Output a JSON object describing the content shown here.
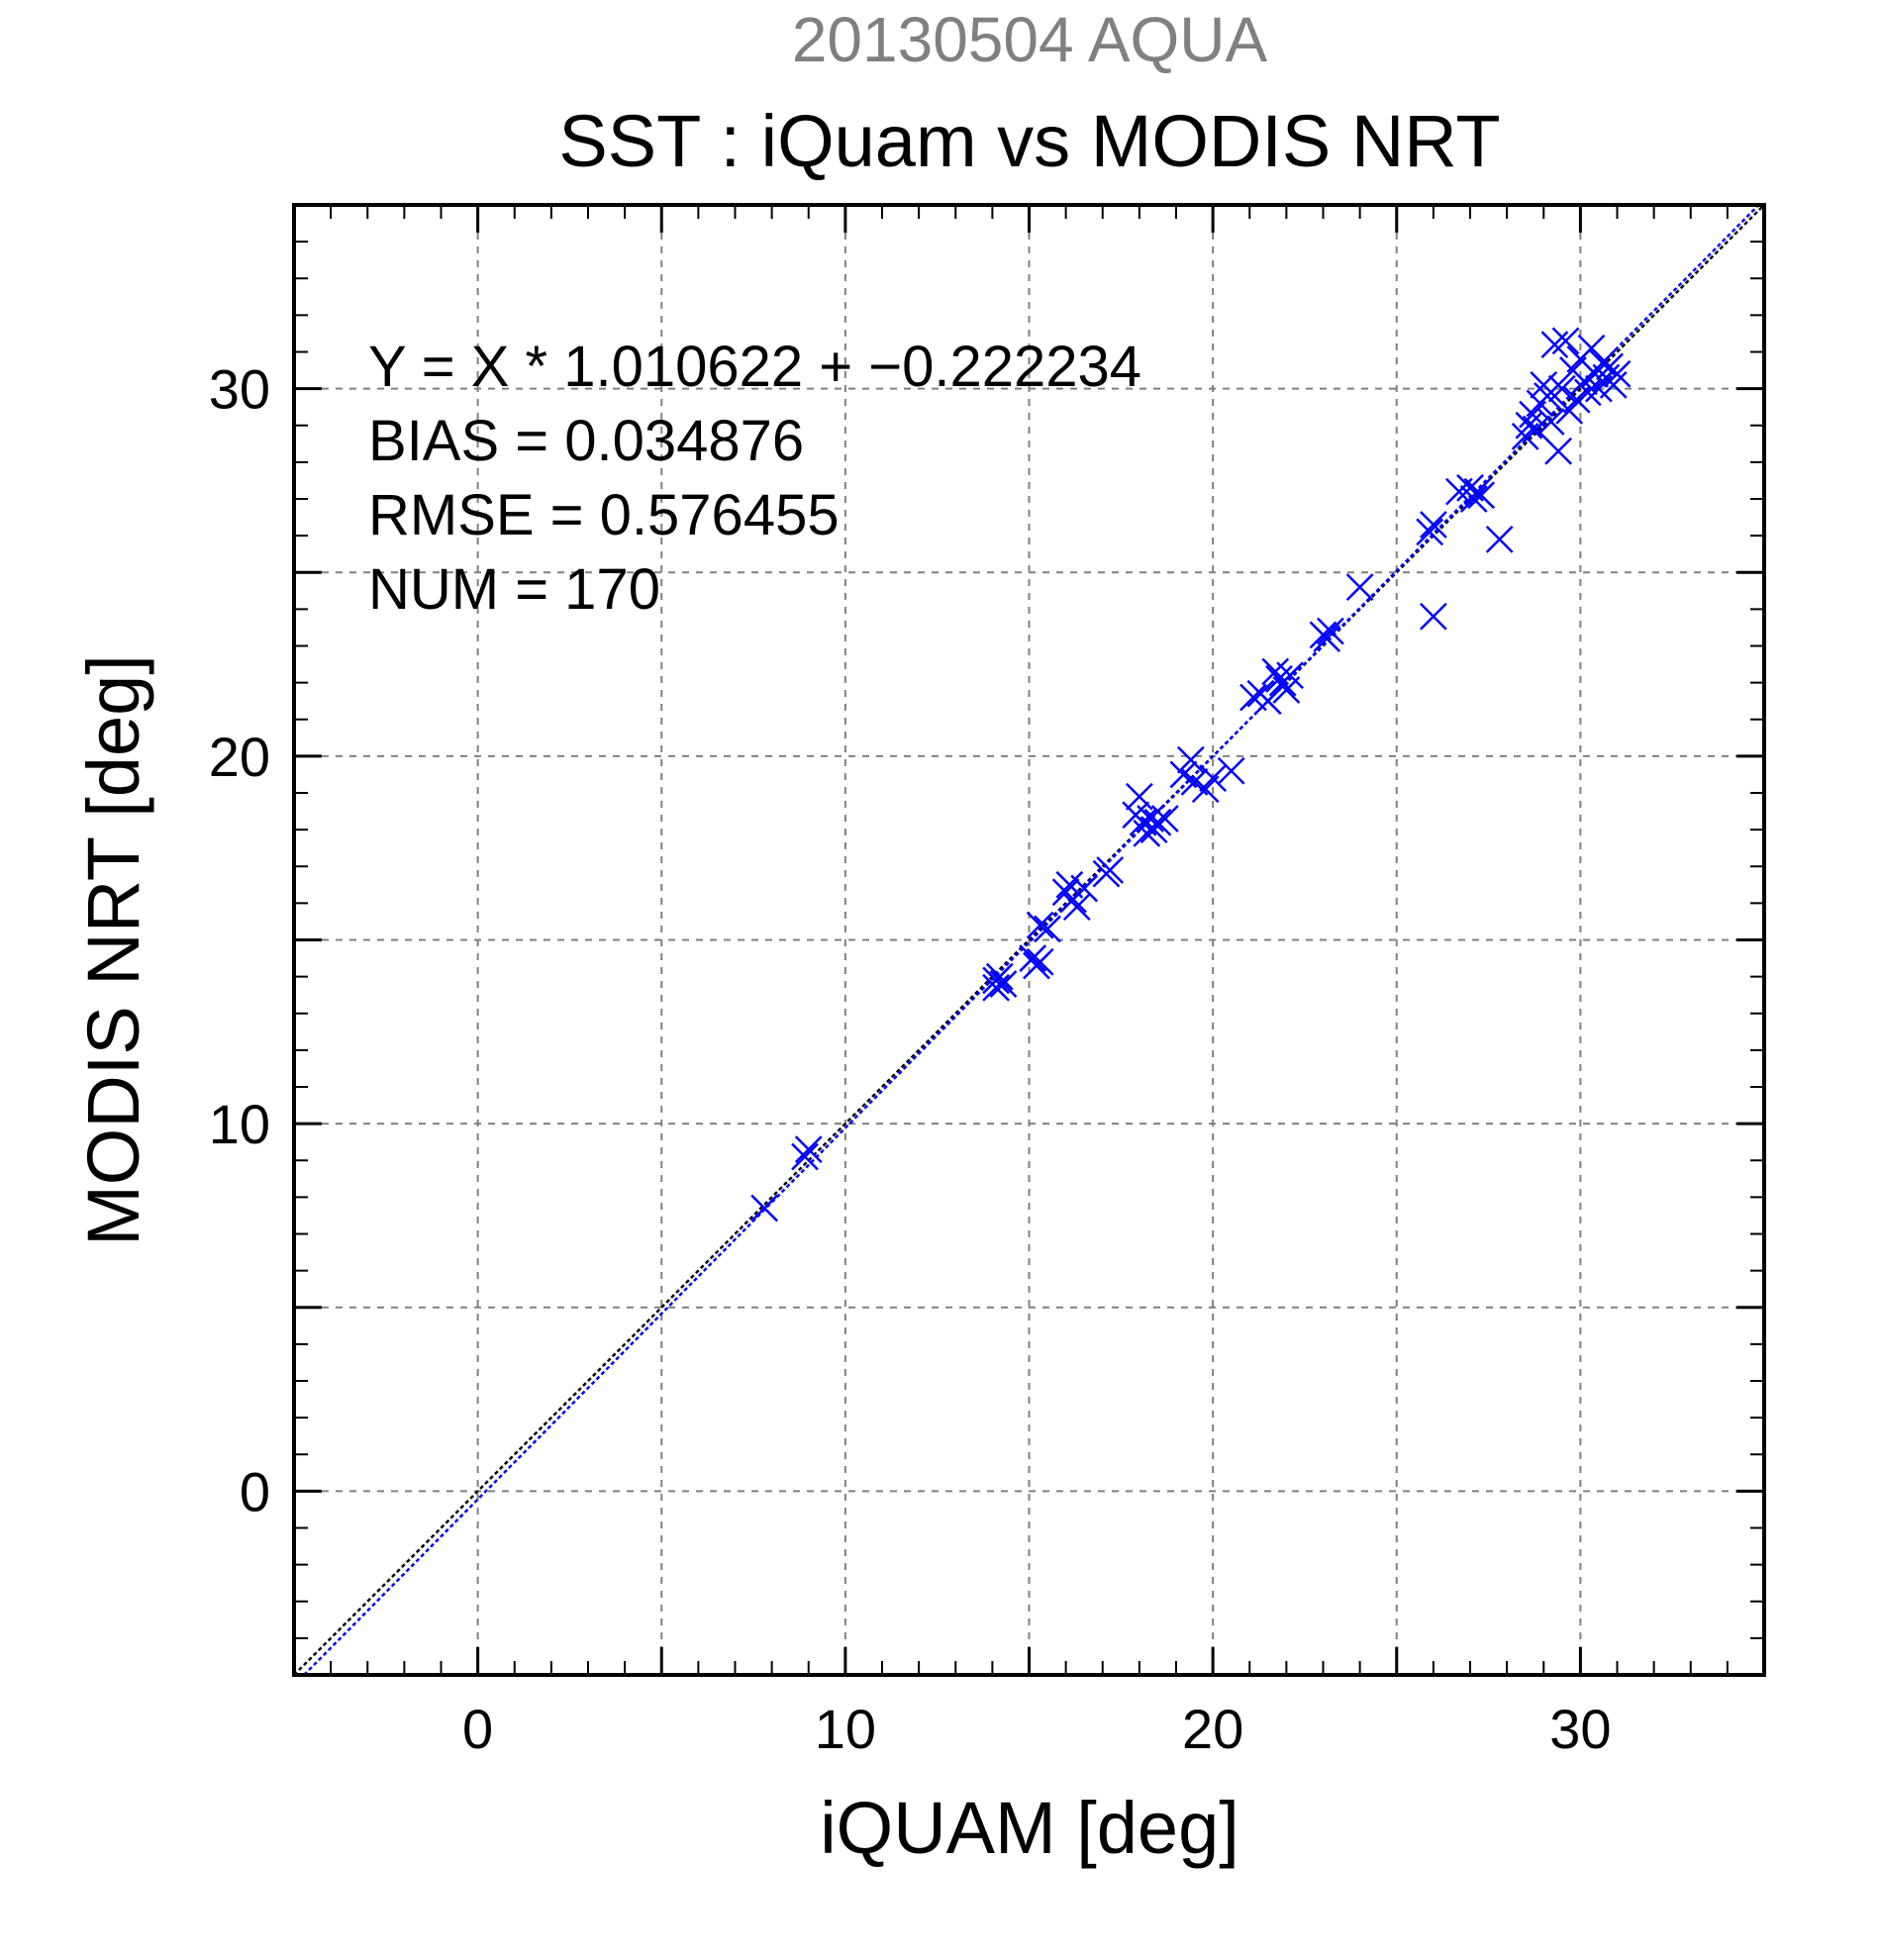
{
  "chart_data": {
    "type": "scatter",
    "title": "SST : iQuam vs MODIS NRT",
    "subtitle": "20130504 AQUA",
    "xlabel": "iQUAM [deg]",
    "ylabel": "MODIS NRT [deg]",
    "xlim": [
      -5,
      35
    ],
    "ylim": [
      -5,
      35
    ],
    "x_ticks": [
      0,
      10,
      20,
      30
    ],
    "y_ticks": [
      0,
      10,
      20,
      30
    ],
    "x_tick_labels": [
      "0",
      "10",
      "20",
      "30"
    ],
    "y_tick_labels": [
      "0",
      "10",
      "20",
      "30"
    ],
    "grid": true,
    "marker": "x",
    "colors": {
      "points": "#0000ff",
      "fit_line": "#0000ff",
      "one_to_one": "#000000",
      "subtitle": "#808080",
      "grid": "#808080"
    },
    "annotations": [
      "Y = X * 1.010622 + −0.222234",
      "BIAS = 0.034876",
      "RMSE = 0.576455",
      "NUM = 170"
    ],
    "fit": {
      "slope": 1.010622,
      "intercept": -0.222234
    },
    "points": [
      [
        7.8,
        7.7
      ],
      [
        9.0,
        9.3
      ],
      [
        8.9,
        9.1
      ],
      [
        14.1,
        13.9
      ],
      [
        14.2,
        14.0
      ],
      [
        14.1,
        13.7
      ],
      [
        14.3,
        13.8
      ],
      [
        15.2,
        14.3
      ],
      [
        15.3,
        14.4
      ],
      [
        15.1,
        14.5
      ],
      [
        15.3,
        15.4
      ],
      [
        15.5,
        15.3
      ],
      [
        16.0,
        16.3
      ],
      [
        16.1,
        16.5
      ],
      [
        16.2,
        16.1
      ],
      [
        16.3,
        15.9
      ],
      [
        16.5,
        16.4
      ],
      [
        17.1,
        16.8
      ],
      [
        17.2,
        16.9
      ],
      [
        17.9,
        18.4
      ],
      [
        18.0,
        18.9
      ],
      [
        18.1,
        18.2
      ],
      [
        18.2,
        17.9
      ],
      [
        18.3,
        18.3
      ],
      [
        18.4,
        18.0
      ],
      [
        18.5,
        18.2
      ],
      [
        18.7,
        18.3
      ],
      [
        19.2,
        19.5
      ],
      [
        19.4,
        19.9
      ],
      [
        19.5,
        19.3
      ],
      [
        19.8,
        19.1
      ],
      [
        20.0,
        19.4
      ],
      [
        20.5,
        19.6
      ],
      [
        21.1,
        21.6
      ],
      [
        21.3,
        21.7
      ],
      [
        21.5,
        21.5
      ],
      [
        21.7,
        22.3
      ],
      [
        21.8,
        22.1
      ],
      [
        21.9,
        22.0
      ],
      [
        22.0,
        21.8
      ],
      [
        22.1,
        22.2
      ],
      [
        23.0,
        23.3
      ],
      [
        23.1,
        23.2
      ],
      [
        23.2,
        23.4
      ],
      [
        24.0,
        24.6
      ],
      [
        25.9,
        26.1
      ],
      [
        26.0,
        26.3
      ],
      [
        26.0,
        23.8
      ],
      [
        26.7,
        27.2
      ],
      [
        27.0,
        27.3
      ],
      [
        27.1,
        27.0
      ],
      [
        27.2,
        27.2
      ],
      [
        27.3,
        27.1
      ],
      [
        27.8,
        25.9
      ],
      [
        28.5,
        28.7
      ],
      [
        28.6,
        29.0
      ],
      [
        28.7,
        29.3
      ],
      [
        28.8,
        28.9
      ],
      [
        28.9,
        29.6
      ],
      [
        29.0,
        30.1
      ],
      [
        29.1,
        29.8
      ],
      [
        29.2,
        29.1
      ],
      [
        29.3,
        31.2
      ],
      [
        29.4,
        28.3
      ],
      [
        29.5,
        30.0
      ],
      [
        29.6,
        31.3
      ],
      [
        29.7,
        29.4
      ],
      [
        29.8,
        30.5
      ],
      [
        29.9,
        29.7
      ],
      [
        30.0,
        30.8
      ],
      [
        30.1,
        30.2
      ],
      [
        30.2,
        29.9
      ],
      [
        30.3,
        31.1
      ],
      [
        30.4,
        30.4
      ],
      [
        30.5,
        30.0
      ],
      [
        30.6,
        30.7
      ],
      [
        30.7,
        30.3
      ],
      [
        30.8,
        30.6
      ],
      [
        30.9,
        30.1
      ],
      [
        31.0,
        30.4
      ]
    ]
  }
}
